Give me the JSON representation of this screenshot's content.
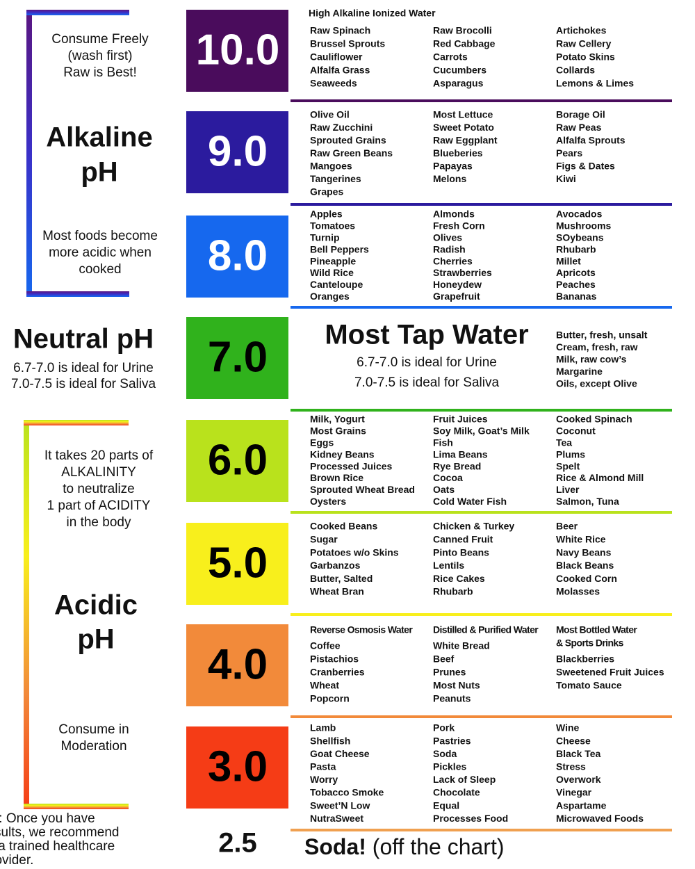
{
  "alkaline": {
    "note_top": [
      "Consume Freely",
      "(wash first)",
      "Raw is Best!"
    ],
    "label": [
      "Alkaline",
      "pH"
    ],
    "note_bottom": [
      "Most foods become",
      "more acidic when",
      "cooked"
    ]
  },
  "neutral": {
    "label": "Neutral pH",
    "lines": [
      "6.7-7.0 is ideal for Urine",
      "7.0-7.5 is ideal for Saliva"
    ]
  },
  "acidic": {
    "note_top": [
      "It takes 20 parts of",
      "ALKALINITY",
      "to neutralize",
      "1 part of ACIDITY",
      "in the body"
    ],
    "label": [
      "Acidic",
      "pH"
    ],
    "note_bottom": [
      "Consume in",
      "Moderation"
    ]
  },
  "footnote": [
    "*Please Note: Once you have",
    "recorded your results, we recommend",
    "that you consult a trained healthcare",
    "provider."
  ],
  "levels": [
    {
      "ph": "10.0",
      "color": "#4a0c5c",
      "text_color": "#ffffff",
      "heading": "High Alkaline Ionized Water",
      "columns": [
        {
          "items": [
            "Raw Spinach",
            "Brussel Sprouts",
            "Cauliflower",
            "Alfalfa Grass",
            "Seaweeds"
          ]
        },
        {
          "items": [
            "Raw Brocolli",
            "Red Cabbage",
            "Carrots",
            "Cucumbers",
            "Asparagus"
          ]
        },
        {
          "items": [
            "Artichokes",
            "Raw Cellery",
            "Potato Skins",
            "Collards",
            "Lemons & Limes"
          ]
        }
      ]
    },
    {
      "ph": "9.0",
      "color": "#2b1b9e",
      "text_color": "#ffffff",
      "columns": [
        {
          "items": [
            "Olive Oil",
            "Raw Zucchini",
            "Sprouted Grains",
            "Raw Green Beans",
            "Mangoes",
            "Tangerines",
            "Grapes"
          ]
        },
        {
          "items": [
            "Most Lettuce",
            "Sweet Potato",
            "Raw Eggplant",
            "Blueberies",
            "Papayas",
            "Melons"
          ]
        },
        {
          "items": [
            "Borage Oil",
            "Raw Peas",
            "Alfalfa Sprouts",
            "Pears",
            "Figs & Dates",
            "Kiwi"
          ]
        }
      ]
    },
    {
      "ph": "8.0",
      "color": "#1668ee",
      "text_color": "#ffffff",
      "columns": [
        {
          "items": [
            "Apples",
            "Tomatoes",
            "Turnip",
            "Bell Peppers",
            "Pineapple",
            "Wild Rice",
            "Canteloupe",
            "Oranges"
          ]
        },
        {
          "items": [
            "Almonds",
            "Fresh Corn",
            "Olives",
            "Radish",
            "Cherries",
            "Strawberries",
            "Honeydew",
            "Grapefruit"
          ]
        },
        {
          "items": [
            "Avocados",
            "Mushrooms",
            "SOybeans",
            "Rhubarb",
            "Millet",
            "Apricots",
            "Peaches",
            "Bananas"
          ]
        }
      ]
    },
    {
      "ph": "7.0",
      "color": "#30b21c",
      "text_color": "#000000",
      "center_title": "Most Tap Water",
      "center_lines": [
        "6.7-7.0 is ideal for Urine",
        "7.0-7.5 is ideal for Saliva"
      ],
      "side_items": [
        "Butter, fresh, unsalt",
        "Cream, fresh, raw",
        "Milk, raw cow’s",
        "Margarine",
        "Oils, except Olive"
      ]
    },
    {
      "ph": "6.0",
      "color": "#b9e21c",
      "text_color": "#000000",
      "columns": [
        {
          "items": [
            "Milk, Yogurt",
            "Most Grains",
            "Eggs",
            "Kidney Beans",
            "Processed Juices",
            "Brown Rice",
            "Sprouted Wheat Bread",
            "Oysters"
          ]
        },
        {
          "items": [
            "Fruit Juices",
            "Soy Milk, Goat’s Milk",
            "Fish",
            "Lima Beans",
            "Rye Bread",
            "Cocoa",
            "Oats",
            "Cold Water Fish"
          ]
        },
        {
          "items": [
            "Cooked Spinach",
            "Coconut",
            "Tea",
            "Plums",
            "Spelt",
            "Rice & Almond Mill",
            "Liver",
            "Salmon, Tuna"
          ]
        }
      ]
    },
    {
      "ph": "5.0",
      "color": "#f8ef1c",
      "text_color": "#000000",
      "columns": [
        {
          "items": [
            "Cooked Beans",
            "Sugar",
            "Potatoes w/o Skins",
            "Garbanzos",
            "Butter, Salted",
            "Wheat Bran"
          ]
        },
        {
          "items": [
            "Chicken & Turkey",
            "Canned Fruit",
            "Pinto Beans",
            "Lentils",
            "Rice Cakes",
            "Rhubarb"
          ]
        },
        {
          "items": [
            "Beer",
            "White Rice",
            "Navy Beans",
            "Black Beans",
            "Cooked Corn",
            "Molasses"
          ]
        }
      ]
    },
    {
      "ph": "4.0",
      "color": "#f28a3a",
      "text_color": "#000000",
      "columns": [
        {
          "heading": [
            "Reverse Osmosis Water"
          ],
          "items": [
            "Coffee",
            "Pistachios",
            "Cranberries",
            "Wheat",
            "Popcorn"
          ]
        },
        {
          "heading": [
            "Distilled & Purified Water"
          ],
          "items": [
            "White Bread",
            "Beef",
            "Prunes",
            "Most Nuts",
            "Peanuts"
          ]
        },
        {
          "heading": [
            "Most Bottled Water",
            "& Sports Drinks"
          ],
          "items": [
            "Blackberries",
            "Sweetened Fruit Juices",
            "Tomato Sauce"
          ]
        }
      ]
    },
    {
      "ph": "3.0",
      "color": "#f53c16",
      "text_color": "#000000",
      "line_color": "#f0a050",
      "columns": [
        {
          "items": [
            "Lamb",
            "Shellfish",
            "Goat Cheese",
            "Pasta",
            "Worry",
            "Tobacco Smoke",
            "Sweet’N Low",
            "NutraSweet"
          ]
        },
        {
          "items": [
            "Pork",
            "Pastries",
            "Soda",
            "Pickles",
            "Lack of Sleep",
            "Chocolate",
            "Equal",
            "Processes Food"
          ]
        },
        {
          "items": [
            "Wine",
            "Cheese",
            "Black Tea",
            "Stress",
            "Overwork",
            "Vinegar",
            "Aspartame",
            "Microwaved Foods"
          ]
        }
      ]
    }
  ],
  "off_chart": {
    "ph": "2.5",
    "label": "Soda!",
    "note": "(off the chart)"
  }
}
